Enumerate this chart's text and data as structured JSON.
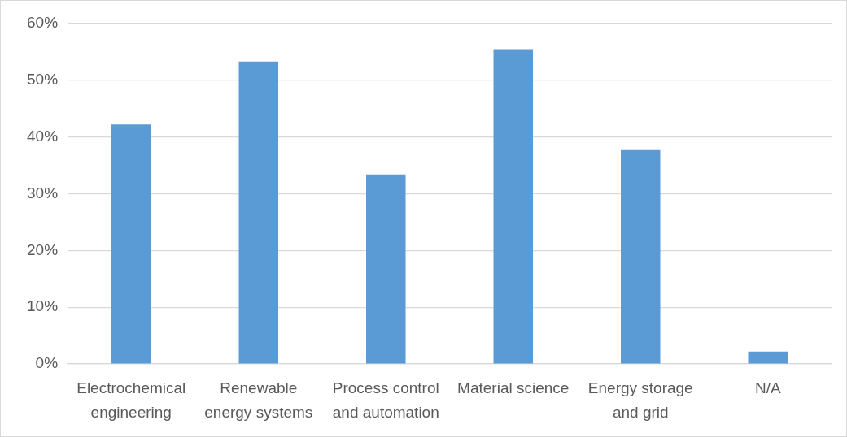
{
  "chart_data": {
    "type": "bar",
    "categories": [
      "Electrochemical engineering",
      "Renewable energy systems",
      "Process control and automation",
      "Material science",
      "Energy storage and grid",
      "N/A"
    ],
    "values": [
      42.2,
      53.3,
      33.4,
      55.5,
      37.7,
      2.2
    ],
    "color": "#5b9bd5",
    "ylim": [
      0,
      60
    ],
    "yticks": [
      {
        "value": 0,
        "label": "0%"
      },
      {
        "value": 10,
        "label": "10%"
      },
      {
        "value": 20,
        "label": "20%"
      },
      {
        "value": 30,
        "label": "30%"
      },
      {
        "value": 40,
        "label": "40%"
      },
      {
        "value": 50,
        "label": "50%"
      },
      {
        "value": 60,
        "label": "60%"
      }
    ],
    "grid": "y",
    "legend": false
  }
}
